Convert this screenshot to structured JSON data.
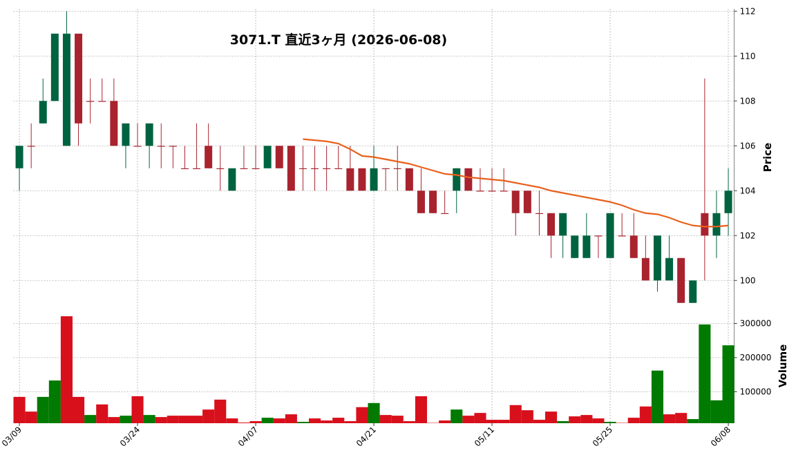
{
  "chart_data": {
    "type": "candlestick",
    "title": "3071.T  直近3ヶ月  (2026-06-08)",
    "y_label": "Price",
    "volume_label": "Volume",
    "categories": [
      "03/09",
      null,
      null,
      null,
      null,
      null,
      null,
      null,
      null,
      null,
      "03/24",
      null,
      null,
      null,
      null,
      null,
      null,
      null,
      null,
      null,
      "04/07",
      null,
      null,
      null,
      null,
      null,
      null,
      null,
      null,
      null,
      "04/21",
      null,
      null,
      null,
      null,
      null,
      null,
      null,
      null,
      null,
      "05/11",
      null,
      null,
      null,
      null,
      null,
      null,
      null,
      null,
      null,
      "05/25",
      null,
      null,
      null,
      null,
      null,
      null,
      null,
      null,
      null,
      "06/08"
    ],
    "open": [
      105,
      106,
      107,
      108,
      106,
      111,
      108,
      108,
      108,
      106,
      106,
      106,
      106,
      106,
      105,
      105,
      106,
      105,
      104,
      105,
      105,
      105,
      106,
      106,
      105,
      105,
      105,
      105,
      105,
      105,
      104,
      105,
      105,
      105,
      104,
      104,
      103,
      104,
      105,
      104,
      104,
      104,
      104,
      104,
      103,
      103,
      102,
      101,
      101,
      102,
      101,
      102,
      102,
      101,
      100,
      100,
      101,
      99,
      103,
      102,
      103
    ],
    "high": [
      106,
      107,
      109,
      111,
      112,
      111,
      109,
      109,
      109,
      107,
      107,
      107,
      107,
      106,
      106,
      107,
      107,
      106,
      105,
      106,
      106,
      106,
      106,
      106,
      106,
      106,
      106,
      106,
      106,
      105,
      106,
      105,
      106,
      105,
      105,
      104,
      104,
      105,
      105,
      105,
      105,
      105,
      104,
      104,
      104,
      103,
      103,
      102,
      103,
      102,
      103,
      103,
      103,
      102,
      102,
      102,
      101,
      100,
      109,
      104,
      105
    ],
    "low": [
      104,
      105,
      107,
      108,
      106,
      106,
      107,
      108,
      106,
      105,
      106,
      105,
      105,
      105,
      105,
      105,
      105,
      104,
      104,
      105,
      105,
      105,
      105,
      104,
      104,
      104,
      104,
      105,
      104,
      104,
      104,
      104,
      104,
      104,
      103,
      103,
      103,
      103,
      104,
      104,
      104,
      104,
      102,
      103,
      102,
      101,
      101,
      101,
      101,
      101,
      101,
      102,
      101,
      100,
      99.5,
      100,
      99,
      99,
      100,
      101,
      102
    ],
    "close": [
      106,
      106,
      108,
      111,
      111,
      107,
      108,
      108,
      106,
      107,
      106,
      107,
      106,
      106,
      105,
      105,
      105,
      105,
      105,
      105,
      105,
      106,
      105,
      104,
      105,
      105,
      105,
      105,
      104,
      104,
      105,
      105,
      105,
      104,
      103,
      103,
      103,
      105,
      104,
      104,
      104,
      104,
      103,
      103,
      103,
      102,
      103,
      102,
      102,
      102,
      103,
      102,
      101,
      100,
      102,
      101,
      99,
      100,
      102,
      103,
      104
    ],
    "moving_average": [
      null,
      null,
      null,
      null,
      null,
      null,
      null,
      null,
      null,
      null,
      null,
      null,
      null,
      null,
      null,
      null,
      null,
      null,
      null,
      null,
      null,
      null,
      null,
      null,
      106.3,
      106.25,
      106.2,
      106.1,
      105.85,
      105.55,
      105.5,
      105.4,
      105.3,
      105.2,
      105.05,
      104.9,
      104.75,
      104.7,
      104.6,
      104.55,
      104.5,
      104.45,
      104.35,
      104.25,
      104.15,
      104.0,
      103.9,
      103.8,
      103.7,
      103.6,
      103.5,
      103.35,
      103.15,
      103.0,
      102.95,
      102.8,
      102.6,
      102.45,
      102.4,
      102.4,
      102.45
    ],
    "volume": [
      85000,
      42000,
      85000,
      133000,
      321000,
      85000,
      32000,
      63000,
      26000,
      30000,
      87000,
      32000,
      26000,
      30000,
      30000,
      30000,
      48000,
      77000,
      22000,
      10000,
      14000,
      24000,
      22000,
      34000,
      12000,
      22000,
      16000,
      24000,
      14000,
      55000,
      67000,
      32000,
      30000,
      14000,
      87000,
      9000,
      16000,
      48000,
      30000,
      38000,
      18000,
      18000,
      61000,
      46000,
      18000,
      42000,
      14000,
      28000,
      32000,
      22000,
      12000,
      9000,
      24000,
      57000,
      162000,
      34000,
      38000,
      20000,
      297000,
      75000,
      236000
    ],
    "up_color": "#006340",
    "down_color": "#a8232e",
    "volume_up_color": "#007a00",
    "volume_down_color": "#d8101c",
    "ma_color": "#e8601c",
    "ylim": [
      98.9,
      112.1
    ],
    "yticks": [
      100,
      102,
      104,
      106,
      108,
      110,
      112
    ],
    "volume_lim": [
      8000,
      353500
    ],
    "volume_ticks": [
      100000,
      200000,
      300000
    ],
    "grid": true
  }
}
